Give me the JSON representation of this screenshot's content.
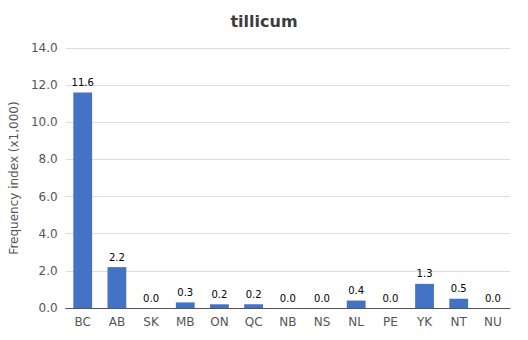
{
  "chart_data": {
    "type": "bar",
    "title": "tillicum",
    "categories": [
      "BC",
      "AB",
      "SK",
      "MB",
      "ON",
      "QC",
      "NB",
      "NS",
      "NL",
      "PE",
      "YK",
      "NT",
      "NU"
    ],
    "values": [
      11.6,
      2.2,
      0.0,
      0.3,
      0.2,
      0.2,
      0.0,
      0.0,
      0.4,
      0.0,
      1.3,
      0.5,
      0.0
    ],
    "value_labels": [
      "11.6",
      "2.2",
      "0.0",
      "0.3",
      "0.2",
      "0.2",
      "0.0",
      "0.0",
      "0.4",
      "0.0",
      "1.3",
      "0.5",
      "0.0"
    ],
    "data_labels": true,
    "color": "#4472C4",
    "ylabel": "Frequency index (x1,000)",
    "ylim": [
      0,
      14.0
    ],
    "yticks": [
      {
        "value": 0.0,
        "label": "0.0"
      },
      {
        "value": 2.0,
        "label": "2.0"
      },
      {
        "value": 4.0,
        "label": "4.0"
      },
      {
        "value": 6.0,
        "label": "6.0"
      },
      {
        "value": 8.0,
        "label": "8.0"
      },
      {
        "value": 10.0,
        "label": "10.0"
      },
      {
        "value": 12.0,
        "label": "12.0"
      },
      {
        "value": 14.0,
        "label": "14.0"
      }
    ],
    "grid": true
  }
}
